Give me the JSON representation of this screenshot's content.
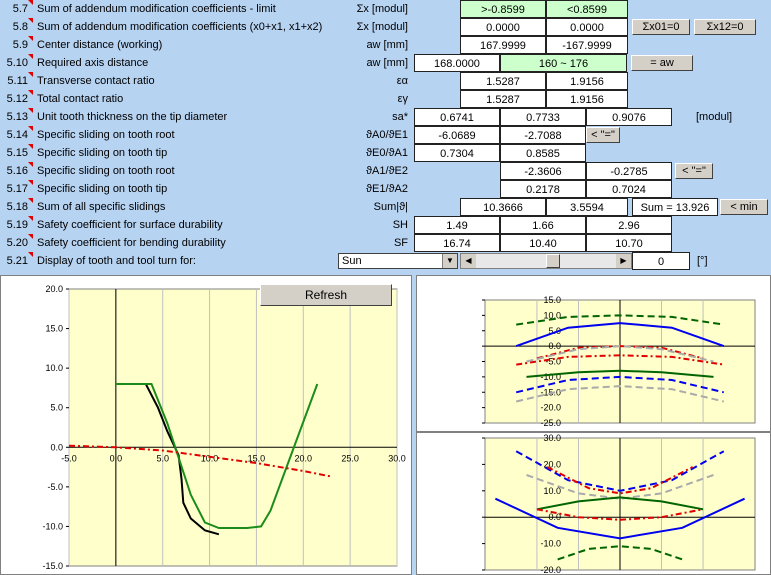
{
  "rows": [
    {
      "num": "5.7",
      "label": "Sum of addendum modification coefficients - limit",
      "sym": "Σx [modul]",
      "c1": ">-0.8599",
      "c2": "<0.8599"
    },
    {
      "num": "5.8",
      "label": "Sum of addendum modification coefficients (x0+x1, x1+x2)",
      "sym": "Σx [modul]",
      "c1": "0.0000",
      "c2": "0.0000",
      "b1": "Σx01=0",
      "b2": "Σx12=0"
    },
    {
      "num": "5.9",
      "label": "Center distance (working)",
      "sym": "aw [mm]",
      "c1": "167.9999",
      "c2": "-167.9999"
    },
    {
      "num": "5.10",
      "label": "Required axis distance",
      "sym": "aw [mm]",
      "c0": "168.0000",
      "c1": "160 ~ 176",
      "b1": "= aw"
    },
    {
      "num": "5.11",
      "label": "Transverse contact ratio",
      "sym": "εα",
      "c1": "1.5287",
      "c2": "1.9156"
    },
    {
      "num": "5.12",
      "label": "Total contact ratio",
      "sym": "εγ",
      "c1": "1.5287",
      "c2": "1.9156"
    },
    {
      "num": "5.13",
      "label": "Unit tooth thickness on the tip diameter",
      "sym": "sa*",
      "c0": "0.6741",
      "c1": "0.7733",
      "c2": "0.9076",
      "unit": "[modul]"
    },
    {
      "num": "5.14",
      "label": "Specific sliding on tooth root",
      "sym": "ϑA0/ϑE1",
      "c0": "-6.0689",
      "c1": "-2.7088",
      "b1": "< \"=\""
    },
    {
      "num": "5.15",
      "label": "Specific sliding on tooth tip",
      "sym": "ϑE0/ϑA1",
      "c0": "0.7304",
      "c1": "0.8585"
    },
    {
      "num": "5.16",
      "label": "Specific sliding on tooth root",
      "sym": "ϑA1/ϑE2",
      "c1": "-2.3606",
      "c2": "-0.2785",
      "b1": "< \"=\""
    },
    {
      "num": "5.17",
      "label": "Specific sliding on tooth tip",
      "sym": "ϑE1/ϑA2",
      "c1": "0.2178",
      "c2": "0.7024"
    },
    {
      "num": "5.18",
      "label": "Sum of all specific slidings",
      "sym": "Sum|ϑ|",
      "c1": "10.3666",
      "c2": "3.5594",
      "sum": "Sum = 13.926",
      "b1": "< min"
    },
    {
      "num": "5.19",
      "label": "Safety coefficient for surface durability",
      "sym": "SH",
      "c0": "1.49",
      "c1": "1.66",
      "c2": "2.96"
    },
    {
      "num": "5.20",
      "label": "Safety coefficient for bending durability",
      "sym": "SF",
      "c0": "16.74",
      "c1": "10.40",
      "c2": "10.70"
    },
    {
      "num": "5.21",
      "label": "Display of tooth and tool turn for:",
      "select": "Sun",
      "scroll_value": "0",
      "unit": "[°]"
    }
  ],
  "refresh_label": "Refresh",
  "main_chart": {
    "x_ticks": [
      "-5.0",
      "0.0",
      "5.0",
      "10.0",
      "15.0",
      "20.0",
      "25.0",
      "30.0"
    ],
    "y_ticks": [
      "20.0",
      "15.0",
      "10.0",
      "5.0",
      "0.0",
      "-5.0",
      "-10.0",
      "-15.0"
    ]
  },
  "top_chart": {
    "y_ticks": [
      "15.0",
      "10.0",
      "5.0",
      "0.0",
      "-5.0",
      "-10.0",
      "-15.0",
      "-20.0",
      "-25.0"
    ]
  },
  "bottom_chart": {
    "y_ticks": [
      "30.0",
      "20.0",
      "10.0",
      "0.0",
      "-10.0",
      "-20.0"
    ]
  },
  "chart_data": [
    {
      "type": "line",
      "xlim": [
        -5,
        30
      ],
      "ylim": [
        -15,
        20
      ],
      "series": [
        {
          "color": "#000000",
          "points": [
            [
              0,
              8
            ],
            [
              3.2,
              8
            ],
            [
              4.5,
              5
            ],
            [
              5.5,
              2
            ],
            [
              6.7,
              -1
            ],
            [
              7,
              -4
            ],
            [
              7.2,
              -7
            ],
            [
              8,
              -9
            ],
            [
              9.5,
              -10.5
            ],
            [
              11,
              -11
            ]
          ]
        },
        {
          "color": "#1a8c1a",
          "points": [
            [
              0,
              8
            ],
            [
              3.8,
              8
            ],
            [
              5.5,
              3
            ],
            [
              8,
              -6
            ],
            [
              9.5,
              -9.5
            ],
            [
              11,
              -10.2
            ],
            [
              14,
              -10.2
            ],
            [
              15.5,
              -10
            ],
            [
              16.5,
              -8
            ],
            [
              21.5,
              8
            ]
          ]
        },
        {
          "color": "#e00000",
          "dash": true,
          "points": [
            [
              -5,
              0.2
            ],
            [
              0,
              0
            ],
            [
              5,
              -0.4
            ],
            [
              10,
              -1.2
            ],
            [
              15,
              -2
            ],
            [
              20,
              -3
            ],
            [
              23,
              -3.7
            ]
          ]
        }
      ]
    },
    {
      "type": "line",
      "xlim": [
        -13,
        13
      ],
      "ylim": [
        -25,
        15
      ],
      "series": [
        {
          "color": "#006400",
          "dash": true,
          "points": [
            [
              -10,
              7
            ],
            [
              -5,
              9.5
            ],
            [
              0,
              10
            ],
            [
              5,
              9.5
            ],
            [
              10,
              7
            ]
          ]
        },
        {
          "color": "#0000ee",
          "points": [
            [
              -10,
              0
            ],
            [
              -5,
              6
            ],
            [
              0,
              7.5
            ],
            [
              5,
              6
            ],
            [
              10,
              0
            ]
          ]
        },
        {
          "color": "#e00000",
          "dash": true,
          "points": [
            [
              -8,
              -4
            ],
            [
              -4,
              -0.5
            ],
            [
              0,
              0
            ],
            [
              4,
              -0.5
            ],
            [
              8,
              -4
            ]
          ]
        },
        {
          "color": "#e00000",
          "dash": true,
          "points": [
            [
              -10,
              -6
            ],
            [
              -5,
              -3.5
            ],
            [
              0,
              -3
            ],
            [
              5,
              -3.5
            ],
            [
              10,
              -6
            ]
          ]
        },
        {
          "color": "#aaaaaa",
          "dash": true,
          "points": [
            [
              -9,
              -5
            ],
            [
              -4,
              -1
            ],
            [
              0,
              0
            ],
            [
              4,
              -1
            ],
            [
              9,
              -5
            ]
          ]
        },
        {
          "color": "#006400",
          "points": [
            [
              -9,
              -10
            ],
            [
              -4,
              -8.5
            ],
            [
              0,
              -8
            ],
            [
              4,
              -8.5
            ],
            [
              9,
              -10
            ]
          ]
        },
        {
          "color": "#0000ee",
          "dash": true,
          "points": [
            [
              -10,
              -15
            ],
            [
              -5,
              -11
            ],
            [
              0,
              -10
            ],
            [
              5,
              -11
            ],
            [
              10,
              -15
            ]
          ]
        },
        {
          "color": "#aaaaaa",
          "dash": true,
          "points": [
            [
              -10,
              -18
            ],
            [
              -5,
              -14
            ],
            [
              0,
              -13
            ],
            [
              5,
              -14
            ],
            [
              10,
              -18
            ]
          ]
        }
      ]
    },
    {
      "type": "line",
      "xlim": [
        -13,
        13
      ],
      "ylim": [
        -20,
        30
      ],
      "series": [
        {
          "color": "#0000ee",
          "dash": true,
          "points": [
            [
              -10,
              25
            ],
            [
              -5,
              14
            ],
            [
              0,
              10
            ],
            [
              5,
              14
            ],
            [
              10,
              25
            ]
          ]
        },
        {
          "color": "#e00000",
          "dash": true,
          "points": [
            [
              -7,
              19
            ],
            [
              -3,
              11
            ],
            [
              0,
              9
            ],
            [
              3,
              11
            ],
            [
              7,
              19
            ]
          ]
        },
        {
          "color": "#aaaaaa",
          "dash": true,
          "points": [
            [
              -9,
              16
            ],
            [
              -4,
              9
            ],
            [
              0,
              7
            ],
            [
              4,
              9
            ],
            [
              9,
              16
            ]
          ]
        },
        {
          "color": "#006400",
          "points": [
            [
              -8,
              3
            ],
            [
              -4,
              6
            ],
            [
              0,
              7.5
            ],
            [
              4,
              6
            ],
            [
              8,
              3
            ]
          ]
        },
        {
          "color": "#e00000",
          "dash": true,
          "points": [
            [
              -8,
              3
            ],
            [
              -4,
              0
            ],
            [
              0,
              -1
            ],
            [
              4,
              0
            ],
            [
              8,
              3
            ]
          ]
        },
        {
          "color": "#0000ee",
          "points": [
            [
              -12,
              7
            ],
            [
              -6,
              -4
            ],
            [
              0,
              -8
            ],
            [
              6,
              -4
            ],
            [
              12,
              7
            ]
          ]
        },
        {
          "color": "#006400",
          "dash": true,
          "points": [
            [
              -6,
              -16
            ],
            [
              -3,
              -12
            ],
            [
              0,
              -11
            ],
            [
              3,
              -12
            ],
            [
              6,
              -16
            ]
          ]
        }
      ]
    }
  ]
}
